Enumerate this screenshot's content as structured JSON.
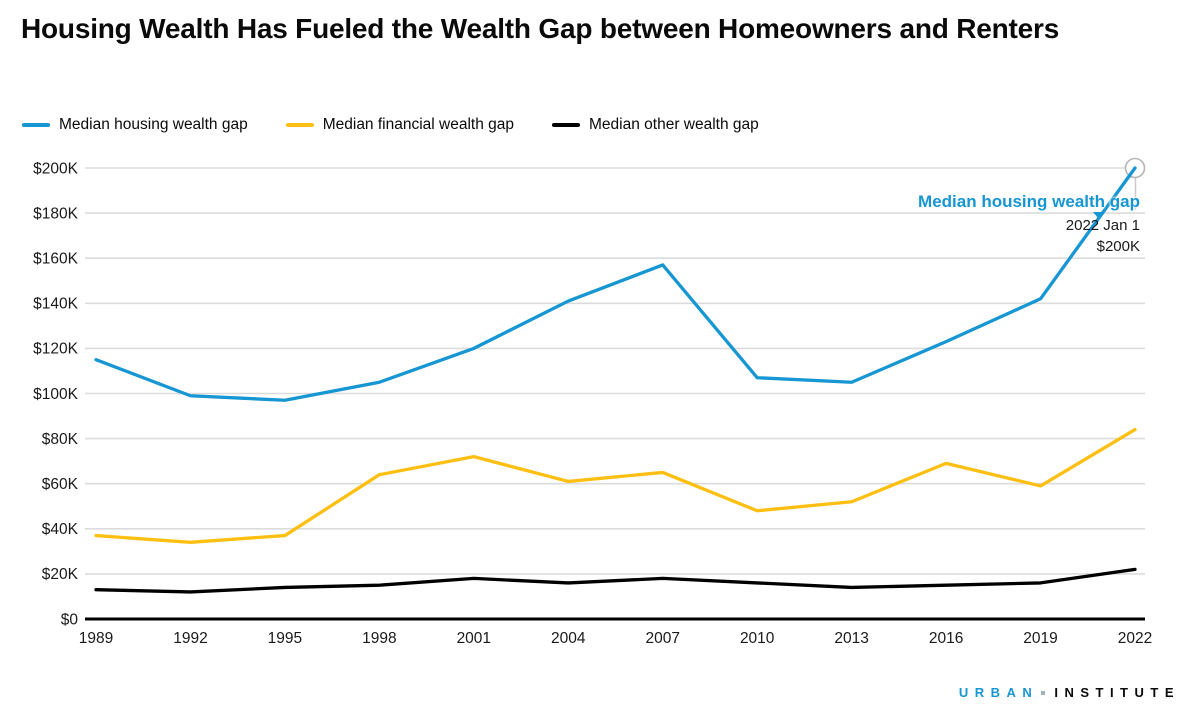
{
  "page": {
    "title": "Housing Wealth Has Fueled the Wealth Gap between Homeowners and Renters"
  },
  "legend": [
    {
      "label": "Median housing wealth gap",
      "color": "#1696d2"
    },
    {
      "label": "Median financial wealth gap",
      "color": "#fdbf11"
    },
    {
      "label": "Median other wealth gap",
      "color": "#000000"
    }
  ],
  "tooltip": {
    "series_label": "Median housing wealth gap",
    "date": "2022 Jan 1",
    "value": "$200K",
    "accent_color": "#1696d2"
  },
  "footer_logo": {
    "word1": "URBAN",
    "word2": "INSTITUTE",
    "brand_color": "#1696d2"
  },
  "chart_data": {
    "type": "line",
    "title": "Housing Wealth Has Fueled the Wealth Gap between Homeowners and Renters",
    "x": [
      1989,
      1992,
      1995,
      1998,
      2001,
      2004,
      2007,
      2010,
      2013,
      2016,
      2019,
      2022
    ],
    "x_tick_labels": [
      "1989",
      "1992",
      "1995",
      "1998",
      "2001",
      "2004",
      "2007",
      "2010",
      "2013",
      "2016",
      "2019",
      "2022"
    ],
    "y_axis": {
      "unit": "USD thousands",
      "ylim_k": [
        0,
        200
      ],
      "ticks": [
        {
          "k": 0,
          "label": "$0"
        },
        {
          "k": 20,
          "label": "$20K"
        },
        {
          "k": 40,
          "label": "$40K"
        },
        {
          "k": 60,
          "label": "$60K"
        },
        {
          "k": 80,
          "label": "$80K"
        },
        {
          "k": 100,
          "label": "$100K"
        },
        {
          "k": 120,
          "label": "$120K"
        },
        {
          "k": 140,
          "label": "$140K"
        },
        {
          "k": 160,
          "label": "$160K"
        },
        {
          "k": 180,
          "label": "$180K"
        },
        {
          "k": 200,
          "label": "$200K"
        }
      ]
    },
    "grid": "horizontal",
    "legend_position": "top",
    "series": [
      {
        "name": "Median housing wealth gap",
        "color": "#1696d2",
        "values_k": [
          115,
          99,
          97,
          105,
          120,
          141,
          157,
          107,
          105,
          123,
          142,
          200
        ]
      },
      {
        "name": "Median financial wealth gap",
        "color": "#fdbf11",
        "values_k": [
          37,
          34,
          37,
          64,
          72,
          61,
          65,
          48,
          52,
          69,
          59,
          84
        ]
      },
      {
        "name": "Median other wealth gap",
        "color": "#000000",
        "values_k": [
          13,
          12,
          14,
          15,
          18,
          16,
          18,
          16,
          14,
          15,
          16,
          22
        ]
      }
    ],
    "endpoint_marker": {
      "series": "Median housing wealth gap",
      "x": 2022,
      "value_k": 200
    }
  }
}
